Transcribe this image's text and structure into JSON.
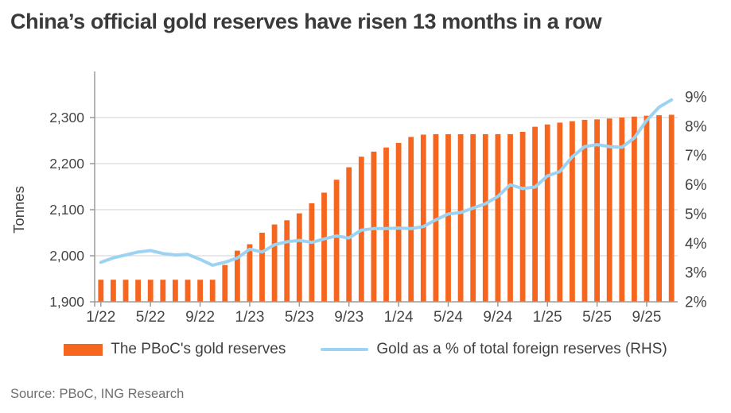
{
  "title": "China’s official gold reserves have risen 13 months in a row",
  "source": "Source: PBoC, ING Research",
  "legend": [
    {
      "label": "The PBoC's gold reserves",
      "type": "bar",
      "color": "#f7661e"
    },
    {
      "label": "Gold as a % of total foreign reserves (RHS)",
      "type": "line",
      "color": "#9cd3f2"
    }
  ],
  "colors": {
    "bar": "#f7661e",
    "line": "#9cd3f2",
    "grid": "#dadada",
    "axis": "#9b9b9b",
    "tick_text": "#444444",
    "title_text": "#3a3a3a",
    "source_text": "#6e6e6e"
  },
  "chart_data": {
    "type": "bar",
    "subtype": "bar+line dual axis",
    "title": "China’s official gold reserves have risen 13 months in a row",
    "x": [
      "1/22",
      "2/22",
      "3/22",
      "4/22",
      "5/22",
      "6/22",
      "7/22",
      "8/22",
      "9/22",
      "10/22",
      "11/22",
      "12/22",
      "1/23",
      "2/23",
      "3/23",
      "4/23",
      "5/23",
      "6/23",
      "7/23",
      "8/23",
      "9/23",
      "10/23",
      "11/23",
      "12/23",
      "1/24",
      "2/24",
      "3/24",
      "4/24",
      "5/24",
      "6/24",
      "7/24",
      "8/24",
      "9/24",
      "10/24",
      "11/24",
      "12/24",
      "1/25",
      "2/25",
      "3/25",
      "4/25",
      "5/25",
      "6/25",
      "7/25",
      "8/25",
      "9/25",
      "10/25",
      "11/25"
    ],
    "x_tick_labels": [
      "1/22",
      "5/22",
      "9/22",
      "1/23",
      "5/23",
      "9/23",
      "1/24",
      "5/24",
      "9/24",
      "1/25",
      "5/25",
      "9/25"
    ],
    "series": [
      {
        "name": "The PBoC's gold reserves",
        "type": "bar",
        "axis": "left",
        "unit": "tonnes",
        "values": [
          1948,
          1948,
          1948,
          1948,
          1948,
          1948,
          1948,
          1948,
          1948,
          1948,
          1980,
          2011,
          2025,
          2050,
          2068,
          2077,
          2092,
          2114,
          2137,
          2165,
          2192,
          2215,
          2226,
          2235,
          2245,
          2258,
          2263,
          2264,
          2264,
          2264,
          2264,
          2264,
          2264,
          2264,
          2269,
          2280,
          2285,
          2289,
          2292,
          2295,
          2296,
          2298,
          2300,
          2302,
          2304,
          2305,
          2306
        ]
      },
      {
        "name": "Gold as a % of total foreign reserves (RHS)",
        "type": "line",
        "axis": "right",
        "unit": "%",
        "values": [
          3.35,
          3.5,
          3.6,
          3.7,
          3.75,
          3.65,
          3.6,
          3.62,
          3.45,
          3.25,
          3.35,
          3.5,
          3.8,
          3.7,
          3.95,
          4.05,
          4.1,
          4.03,
          4.15,
          4.25,
          4.18,
          4.45,
          4.5,
          4.5,
          4.52,
          4.5,
          4.57,
          4.8,
          5.0,
          5.05,
          5.2,
          5.35,
          5.6,
          6.0,
          5.87,
          5.92,
          6.3,
          6.45,
          6.95,
          7.3,
          7.37,
          7.3,
          7.28,
          7.6,
          8.2,
          8.65,
          8.9
        ]
      }
    ],
    "left_axis": {
      "label": "Tonnes",
      "min": 1900,
      "max": 2375,
      "ticks": [
        1900,
        2000,
        2100,
        2200,
        2300
      ],
      "tick_labels": [
        "1,900",
        "2,000",
        "2,100",
        "2,200",
        "2,300"
      ]
    },
    "right_axis": {
      "label": "",
      "min": 2,
      "max": 9.45,
      "ticks": [
        2,
        3,
        4,
        5,
        6,
        7,
        8,
        9
      ],
      "tick_labels": [
        "2%",
        "3%",
        "4%",
        "5%",
        "6%",
        "7%",
        "8%",
        "9%"
      ]
    },
    "grid": "horizontal gridlines at left-axis ticks",
    "legend_position": "bottom"
  }
}
